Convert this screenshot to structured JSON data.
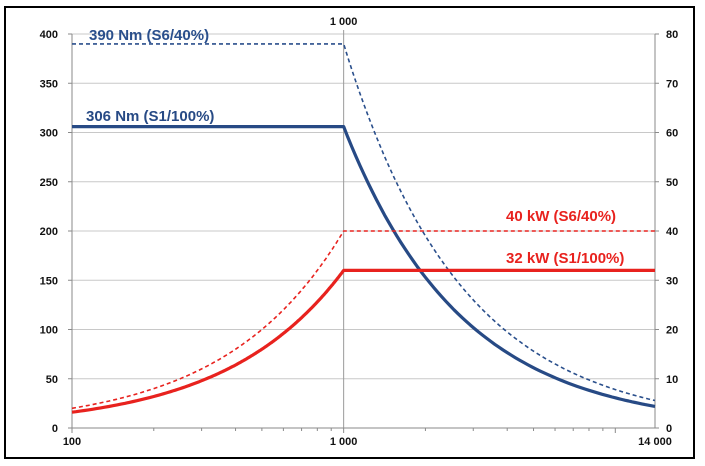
{
  "chart_data": {
    "type": "line",
    "title": "",
    "xlabel": "",
    "ylabel_left": "",
    "ylabel_right": "",
    "x_scale": "log",
    "xlim": [
      100,
      14000
    ],
    "ylim_left": [
      0,
      400
    ],
    "ylim_right": [
      0,
      80
    ],
    "grid": true,
    "x_ticks": [
      {
        "value": 100,
        "label": "100"
      },
      {
        "value": 1000,
        "label": "1 000"
      },
      {
        "value": 14000,
        "label": "14 000"
      }
    ],
    "top_marker": {
      "value": 1000,
      "label": "1 000"
    },
    "y_ticks_left": [
      "0",
      "50",
      "100",
      "150",
      "200",
      "250",
      "300",
      "350",
      "400"
    ],
    "y_ticks_right": [
      "0",
      "10",
      "20",
      "30",
      "40",
      "50",
      "60",
      "70",
      "80"
    ],
    "series": [
      {
        "axis": "left",
        "style": "dashed",
        "color": "#2a4f8c",
        "x": [
          100,
          1000,
          2000,
          4000,
          8000,
          14000
        ],
        "y": [
          390,
          390,
          195,
          97.5,
          48.8,
          27.9
        ]
      },
      {
        "axis": "left",
        "style": "solid",
        "color": "#274a85",
        "x": [
          100,
          1000,
          2000,
          4000,
          8000,
          14000
        ],
        "y": [
          306,
          306,
          153,
          76.5,
          38.3,
          21.9
        ]
      },
      {
        "axis": "right",
        "style": "dashed",
        "color": "#e8221e",
        "x": [
          100,
          200,
          300,
          400,
          500,
          600,
          700,
          800,
          900,
          1000,
          14000
        ],
        "y": [
          4,
          8,
          12,
          16,
          20,
          24,
          28,
          32,
          36,
          40,
          40
        ]
      },
      {
        "axis": "right",
        "style": "solid",
        "color": "#e8221e",
        "x": [
          100,
          200,
          300,
          400,
          500,
          600,
          700,
          800,
          900,
          1000,
          14000
        ],
        "y": [
          3.2,
          6.4,
          9.6,
          12.8,
          16,
          19.2,
          22.4,
          25.6,
          28.8,
          32,
          32
        ]
      }
    ],
    "annotations": [
      {
        "text": "390 Nm (S6/40%)",
        "color": "#2a4f8c"
      },
      {
        "text": "306 Nm (S1/100%)",
        "color": "#274a85"
      },
      {
        "text": "40 kW (S6/40%)",
        "color": "#e8221e"
      },
      {
        "text": "32 kW (S1/100%)",
        "color": "#e8221e"
      }
    ]
  }
}
